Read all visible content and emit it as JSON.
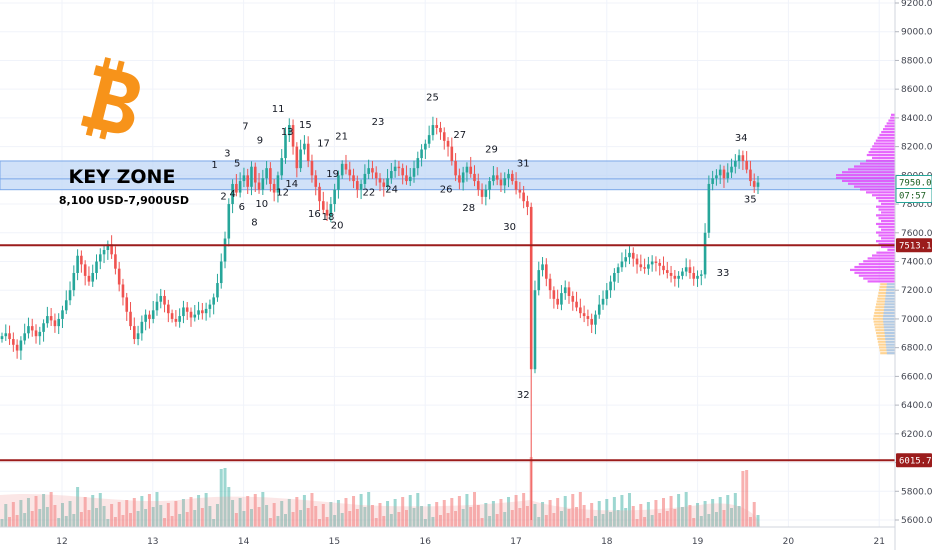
{
  "chart_data": {
    "type": "candlestick",
    "symbol_logo": "bitcoin-icon",
    "y_axis": {
      "ticks": [
        "9200.0",
        "9000.0",
        "8800.0",
        "8600.0",
        "8400.0",
        "8200.0",
        "8000.0",
        "7800.0",
        "7600.0",
        "7400.0",
        "7200.0",
        "7000.0",
        "6800.0",
        "6600.0",
        "6400.0",
        "6200.0",
        "6000.0",
        "5800.0",
        "5600.0"
      ],
      "ylim": [
        5560,
        9220
      ]
    },
    "x_axis": {
      "ticks": [
        "12",
        "13",
        "14",
        "15",
        "16",
        "17",
        "18",
        "19",
        "20",
        "21"
      ]
    },
    "key_zone": {
      "title": "KEY ZONE",
      "subtitle": "8,100 USD-7,900USD",
      "low": 7900,
      "high": 8100,
      "fill": "#bcd4f5",
      "mid_line": 7975
    },
    "levels": [
      {
        "value": 7513.1,
        "label": "7513.1",
        "color": "#9b1c1c"
      },
      {
        "value": 6015.7,
        "label": "6015.7",
        "color": "#9b1c1c"
      }
    ],
    "price_tags": [
      {
        "value": 7950.0,
        "label": "7950.0",
        "color": "#26a69a"
      },
      {
        "value": 7860,
        "label": "07:57",
        "color": "#26a69a"
      }
    ],
    "up_color": "#26a69a",
    "down_color": "#ef5350",
    "profile_up_color": "#e040fb",
    "profile_down_color": "#ffcc80",
    "wave_labels": [
      {
        "t": "1",
        "day": 13.68,
        "price": 8050
      },
      {
        "t": "2",
        "day": 13.78,
        "price": 7830
      },
      {
        "t": "3",
        "day": 13.82,
        "price": 8130
      },
      {
        "t": "4",
        "day": 13.88,
        "price": 7850
      },
      {
        "t": "5",
        "day": 13.93,
        "price": 8060
      },
      {
        "t": "6",
        "day": 13.98,
        "price": 7760
      },
      {
        "t": "7",
        "day": 14.02,
        "price": 8320
      },
      {
        "t": "8",
        "day": 14.12,
        "price": 7650
      },
      {
        "t": "9",
        "day": 14.18,
        "price": 8220
      },
      {
        "t": "10",
        "day": 14.2,
        "price": 7780
      },
      {
        "t": "11",
        "day": 14.38,
        "price": 8440
      },
      {
        "t": "12",
        "day": 14.43,
        "price": 7860
      },
      {
        "t": "13",
        "day": 14.48,
        "price": 8280
      },
      {
        "t": "14",
        "day": 14.53,
        "price": 7920
      },
      {
        "t": "15",
        "day": 14.68,
        "price": 8330
      },
      {
        "t": "16",
        "day": 14.78,
        "price": 7710
      },
      {
        "t": "17",
        "day": 14.88,
        "price": 8200
      },
      {
        "t": "18",
        "day": 14.93,
        "price": 7690
      },
      {
        "t": "19",
        "day": 14.98,
        "price": 7990
      },
      {
        "t": "20",
        "day": 15.03,
        "price": 7630
      },
      {
        "t": "21",
        "day": 15.08,
        "price": 8250
      },
      {
        "t": "22",
        "day": 15.38,
        "price": 7860
      },
      {
        "t": "23",
        "day": 15.48,
        "price": 8350
      },
      {
        "t": "24",
        "day": 15.63,
        "price": 7880
      },
      {
        "t": "25",
        "day": 16.08,
        "price": 8520
      },
      {
        "t": "26",
        "day": 16.23,
        "price": 7880
      },
      {
        "t": "27",
        "day": 16.38,
        "price": 8260
      },
      {
        "t": "28",
        "day": 16.48,
        "price": 7750
      },
      {
        "t": "29",
        "day": 16.73,
        "price": 8160
      },
      {
        "t": "30",
        "day": 16.93,
        "price": 7620
      },
      {
        "t": "31",
        "day": 17.08,
        "price": 8060
      },
      {
        "t": "32",
        "day": 17.08,
        "price": 6450
      },
      {
        "t": "33",
        "day": 19.28,
        "price": 7300
      },
      {
        "t": "34",
        "day": 19.48,
        "price": 8240
      },
      {
        "t": "35",
        "day": 19.58,
        "price": 7810
      }
    ],
    "candles_close": [
      6880,
      6900,
      6860,
      6820,
      6780,
      6850,
      6900,
      6950,
      6920,
      6880,
      6910,
      6970,
      7020,
      6990,
      6950,
      7000,
      7060,
      7130,
      7200,
      7320,
      7440,
      7380,
      7300,
      7260,
      7320,
      7400,
      7450,
      7480,
      7520,
      7450,
      7350,
      7240,
      7150,
      7050,
      6950,
      6860,
      6900,
      6980,
      7030,
      7000,
      7060,
      7120,
      7160,
      7100,
      7040,
      7000,
      6980,
      7020,
      7080,
      7050,
      7010,
      7030,
      7060,
      7040,
      7070,
      7100,
      7150,
      7250,
      7400,
      7560,
      7800,
      7940,
      7880,
      7960,
      8000,
      7920,
      8060,
      7950,
      7900,
      7980,
      8050,
      7940,
      7880,
      8000,
      8120,
      8280,
      8350,
      8200,
      8050,
      8180,
      8220,
      8100,
      8000,
      7920,
      7820,
      7760,
      7720,
      7800,
      7900,
      8000,
      8080,
      8040,
      8000,
      7960,
      7900,
      7940,
      8010,
      8050,
      8020,
      7980,
      7950,
      7920,
      7980,
      8030,
      8060,
      8050,
      8000,
      7960,
      7990,
      8050,
      8120,
      8180,
      8220,
      8280,
      8350,
      8330,
      8300,
      8240,
      8200,
      8100,
      8000,
      7950,
      8020,
      8060,
      8010,
      7960,
      7900,
      7850,
      7900,
      7960,
      8000,
      7970,
      7930,
      7980,
      8010,
      7960,
      7900,
      7880,
      7820,
      7780,
      6650,
      7200,
      7340,
      7380,
      7280,
      7200,
      7140,
      7100,
      7180,
      7220,
      7160,
      7120,
      7080,
      7040,
      7020,
      7000,
      6960,
      7030,
      7100,
      7140,
      7200,
      7260,
      7320,
      7360,
      7400,
      7430,
      7460,
      7420,
      7380,
      7360,
      7350,
      7380,
      7400,
      7390,
      7370,
      7340,
      7320,
      7300,
      7280,
      7300,
      7330,
      7360,
      7320,
      7280,
      7300,
      7310,
      7600,
      7940,
      7980,
      8000,
      8040,
      7980,
      8020,
      8060,
      8100,
      8140,
      8100,
      8040,
      7960,
      7920,
      7950
    ]
  }
}
